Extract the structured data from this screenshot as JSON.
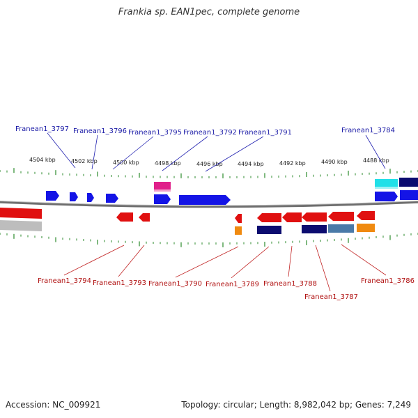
{
  "title": "Frankia sp. EAN1pec, complete genome",
  "footer": {
    "accession": "Accession: NC_009921",
    "summary": "Topology: circular; Length: 8,982,042 bp; Genes: 7,249"
  },
  "kbp_labels": [
    "4504 kbp",
    "4502 kbp",
    "4500 kbp",
    "4498 kbp",
    "4496 kbp",
    "4494 kbp",
    "4492 kbp",
    "4490 kbp",
    "4488 kbp"
  ],
  "top_genes": [
    "Franean1_3797",
    "Franean1_3796",
    "Franean1_3795",
    "Franean1_3792",
    "Franean1_3791",
    "Franean1_3784"
  ],
  "bottom_genes": [
    "Franean1_3794",
    "Franean1_3793",
    "Franean1_3790",
    "Franean1_3789",
    "Franean1_3788",
    "Franean1_3787",
    "Franean1_3786"
  ],
  "colors": {
    "forward_gene": "#1010e0",
    "reverse_gene": "#e01010",
    "top_label": "#1a1aa6",
    "bottom_label": "#b01010",
    "tick": "#2a8a2a",
    "backbone": "#777777"
  }
}
